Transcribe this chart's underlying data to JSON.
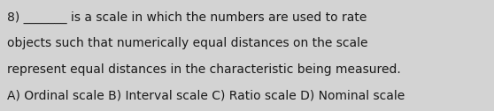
{
  "lines": [
    "8) _______ is a scale in which the numbers are used to rate",
    "objects such that numerically equal distances on the scale",
    "represent equal distances in the characteristic being measured.",
    "A) Ordinal scale B) Interval scale C) Ratio scale D) Nominal scale"
  ],
  "bg_color": "#d3d3d3",
  "text_color": "#1a1a1a",
  "font_size": 10.0,
  "fig_width": 5.58,
  "fig_height": 1.26,
  "dpi": 100
}
